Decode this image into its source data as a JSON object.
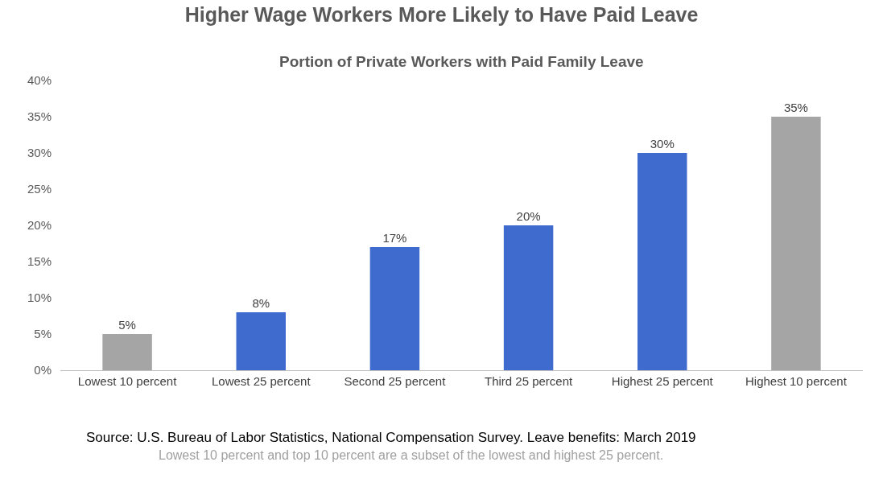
{
  "chart_data": {
    "type": "bar",
    "title": "Higher Wage Workers More Likely to Have Paid Leave",
    "subtitle": "Portion of Private Workers with Paid Family Leave",
    "categories": [
      "Lowest 10 percent",
      "Lowest 25 percent",
      "Second 25 percent",
      "Third 25 percent",
      "Highest 25 percent",
      "Highest 10 percent"
    ],
    "values": [
      5,
      8,
      17,
      20,
      30,
      35
    ],
    "colors": [
      "#a5a5a5",
      "#3f6bce",
      "#3f6bce",
      "#3f6bce",
      "#3f6bce",
      "#a5a5a5"
    ],
    "value_labels": [
      "5%",
      "8%",
      "17%",
      "20%",
      "30%",
      "35%"
    ],
    "ylim": [
      0,
      40
    ],
    "yticks": [
      {
        "value": 0,
        "label": "0%"
      },
      {
        "value": 5,
        "label": "5%"
      },
      {
        "value": 10,
        "label": "10%"
      },
      {
        "value": 15,
        "label": "15%"
      },
      {
        "value": 20,
        "label": "20%"
      },
      {
        "value": 25,
        "label": "25%"
      },
      {
        "value": 30,
        "label": "30%"
      },
      {
        "value": 35,
        "label": "35%"
      },
      {
        "value": 40,
        "label": "40%"
      }
    ],
    "grid": false,
    "legend": false,
    "annotations": [
      "Source: U.S. Bureau of Labor Statistics, National Compensation Survey. Leave benefits: March 2019",
      "Lowest 10 percent and top 10 percent are a subset of the lowest and highest 25 percent."
    ]
  }
}
